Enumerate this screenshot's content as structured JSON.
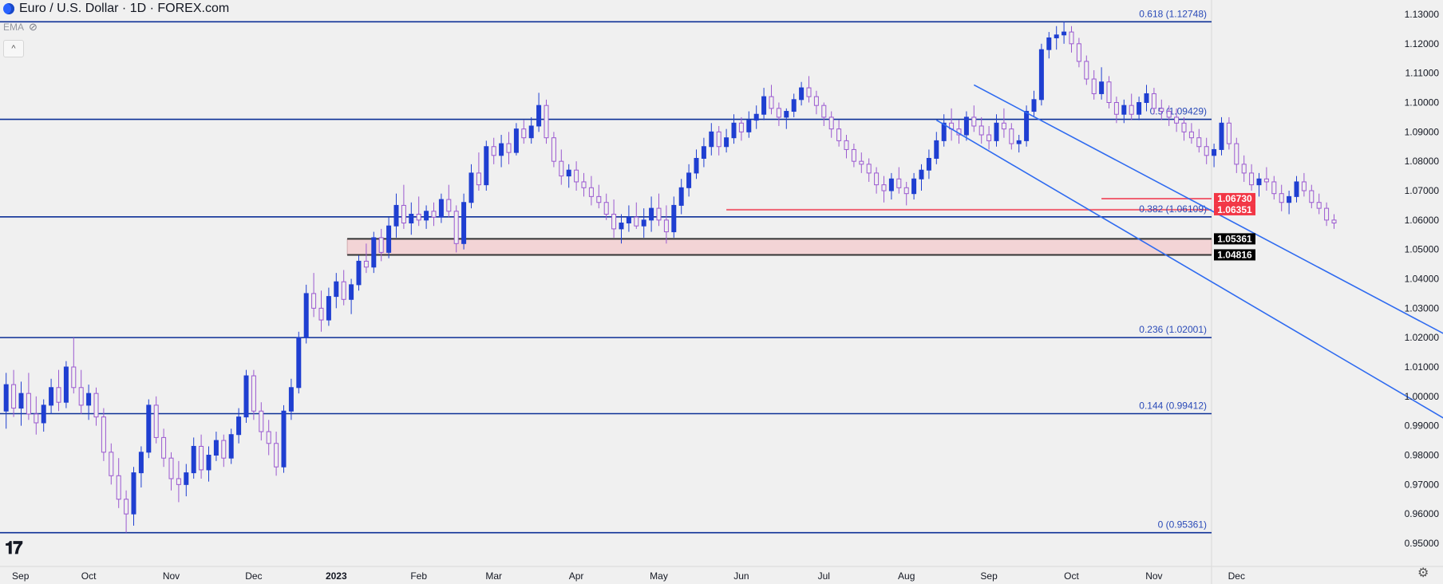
{
  "header": {
    "title": "Euro / U.S. Dollar · 1D · FOREX.com",
    "indicator": "EMA",
    "collapse_label": "^"
  },
  "watermark": "TV",
  "colors": {
    "bg": "#f0f0f0",
    "up": "#1f3fd1",
    "down": "#9b59d0",
    "level": "#0c2f96",
    "channel": "#2f6bf0",
    "red_level": "#f06272",
    "red_badge": "#f23645",
    "zone_fill": "#f3d4d6",
    "black": "#000000"
  },
  "chart_data": {
    "type": "candlestick",
    "title": "Euro / U.S. Dollar · 1D · FOREX.com",
    "y_range": [
      0.95,
      1.13
    ],
    "y_ticks": [
      "1.13000",
      "1.12000",
      "1.11000",
      "1.10000",
      "1.09000",
      "1.08000",
      "1.07000",
      "1.06000",
      "1.05000",
      "1.04000",
      "1.03000",
      "1.02000",
      "1.01000",
      "1.00000",
      "0.99000",
      "0.98000",
      "0.97000",
      "0.96000",
      "0.95000"
    ],
    "x_ticks": [
      "Sep",
      "Oct",
      "Nov",
      "Dec",
      "2023",
      "Feb",
      "Mar",
      "Apr",
      "May",
      "Jun",
      "Jul",
      "Aug",
      "Sep",
      "Oct",
      "Nov",
      "Dec"
    ],
    "fib_levels": [
      {
        "label": "0.618 (1.12748)",
        "value": 1.12748
      },
      {
        "label": "0.5 (1.09429)",
        "value": 1.09429
      },
      {
        "label": "0.382 (1.06109)",
        "value": 1.06109
      },
      {
        "label": "0.236 (1.02001)",
        "value": 1.02001
      },
      {
        "label": "0.144 (0.99412)",
        "value": 0.99412
      },
      {
        "label": "0 (0.95361)",
        "value": 0.95361
      }
    ],
    "price_badges": [
      {
        "label": "1.06730",
        "value": 1.0673,
        "color": "red"
      },
      {
        "label": "1.06351",
        "value": 1.06351,
        "color": "red"
      },
      {
        "label": "1.05361",
        "value": 1.05361,
        "color": "black"
      },
      {
        "label": "1.04816",
        "value": 1.04816,
        "color": "black"
      }
    ],
    "support_zone": [
      1.04816,
      1.05361
    ],
    "candles": [
      [
        0.995,
        1.008,
        0.989,
        1.004
      ],
      [
        1.004,
        1.009,
        0.993,
        0.996
      ],
      [
        0.996,
        1.005,
        0.99,
        1.001
      ],
      [
        1.001,
        1.008,
        0.992,
        0.994
      ],
      [
        0.994,
        1.0,
        0.987,
        0.991
      ],
      [
        0.991,
        0.999,
        0.988,
        0.997
      ],
      [
        0.997,
        1.006,
        0.994,
        1.003
      ],
      [
        1.003,
        1.009,
        0.995,
        0.998
      ],
      [
        0.998,
        1.012,
        0.996,
        1.01
      ],
      [
        1.01,
        1.02,
        1.001,
        1.003
      ],
      [
        1.003,
        1.009,
        0.994,
        0.997
      ],
      [
        0.997,
        1.004,
        0.992,
        1.001
      ],
      [
        1.001,
        1.003,
        0.99,
        0.993
      ],
      [
        0.993,
        0.996,
        0.978,
        0.981
      ],
      [
        0.981,
        0.984,
        0.97,
        0.973
      ],
      [
        0.973,
        0.979,
        0.962,
        0.965
      ],
      [
        0.965,
        0.968,
        0.9536,
        0.96
      ],
      [
        0.96,
        0.976,
        0.956,
        0.974
      ],
      [
        0.974,
        0.983,
        0.969,
        0.981
      ],
      [
        0.981,
        0.999,
        0.979,
        0.997
      ],
      [
        0.997,
        1.0,
        0.984,
        0.986
      ],
      [
        0.986,
        0.989,
        0.976,
        0.979
      ],
      [
        0.979,
        0.981,
        0.968,
        0.972
      ],
      [
        0.972,
        0.978,
        0.964,
        0.97
      ],
      [
        0.97,
        0.977,
        0.966,
        0.974
      ],
      [
        0.974,
        0.986,
        0.972,
        0.983
      ],
      [
        0.983,
        0.987,
        0.972,
        0.975
      ],
      [
        0.975,
        0.983,
        0.971,
        0.98
      ],
      [
        0.98,
        0.988,
        0.978,
        0.985
      ],
      [
        0.985,
        0.987,
        0.976,
        0.979
      ],
      [
        0.979,
        0.989,
        0.977,
        0.987
      ],
      [
        0.987,
        0.996,
        0.984,
        0.993
      ],
      [
        0.993,
        1.009,
        0.991,
        1.007
      ],
      [
        1.007,
        1.009,
        0.992,
        0.995
      ],
      [
        0.995,
        0.998,
        0.985,
        0.988
      ],
      [
        0.988,
        0.992,
        0.98,
        0.984
      ],
      [
        0.984,
        0.988,
        0.973,
        0.976
      ],
      [
        0.976,
        0.997,
        0.974,
        0.995
      ],
      [
        0.995,
        1.006,
        0.992,
        1.003
      ],
      [
        1.003,
        1.022,
        1.001,
        1.02
      ],
      [
        1.02,
        1.038,
        1.018,
        1.035
      ],
      [
        1.035,
        1.042,
        1.027,
        1.03
      ],
      [
        1.03,
        1.036,
        1.022,
        1.026
      ],
      [
        1.026,
        1.037,
        1.024,
        1.034
      ],
      [
        1.034,
        1.042,
        1.03,
        1.039
      ],
      [
        1.039,
        1.043,
        1.031,
        1.033
      ],
      [
        1.033,
        1.04,
        1.028,
        1.038
      ],
      [
        1.038,
        1.048,
        1.036,
        1.046
      ],
      [
        1.046,
        1.052,
        1.042,
        1.044
      ],
      [
        1.044,
        1.056,
        1.042,
        1.054
      ],
      [
        1.054,
        1.057,
        1.046,
        1.049
      ],
      [
        1.049,
        1.061,
        1.047,
        1.058
      ],
      [
        1.058,
        1.069,
        1.054,
        1.065
      ],
      [
        1.065,
        1.072,
        1.057,
        1.059
      ],
      [
        1.059,
        1.066,
        1.055,
        1.062
      ],
      [
        1.062,
        1.068,
        1.058,
        1.06
      ],
      [
        1.06,
        1.065,
        1.057,
        1.063
      ],
      [
        1.063,
        1.066,
        1.058,
        1.061
      ],
      [
        1.061,
        1.069,
        1.059,
        1.067
      ],
      [
        1.067,
        1.072,
        1.061,
        1.063
      ],
      [
        1.063,
        1.065,
        1.049,
        1.052
      ],
      [
        1.052,
        1.069,
        1.05,
        1.066
      ],
      [
        1.066,
        1.079,
        1.064,
        1.076
      ],
      [
        1.076,
        1.083,
        1.07,
        1.072
      ],
      [
        1.072,
        1.087,
        1.07,
        1.085
      ],
      [
        1.085,
        1.088,
        1.079,
        1.082
      ],
      [
        1.082,
        1.089,
        1.078,
        1.086
      ],
      [
        1.086,
        1.09,
        1.079,
        1.083
      ],
      [
        1.083,
        1.093,
        1.082,
        1.091
      ],
      [
        1.091,
        1.094,
        1.086,
        1.088
      ],
      [
        1.088,
        1.095,
        1.086,
        1.092
      ],
      [
        1.092,
        1.1033,
        1.09,
        1.099
      ],
      [
        1.099,
        1.101,
        1.086,
        1.088
      ],
      [
        1.088,
        1.09,
        1.078,
        1.08
      ],
      [
        1.08,
        1.084,
        1.072,
        1.075
      ],
      [
        1.075,
        1.079,
        1.071,
        1.077
      ],
      [
        1.077,
        1.08,
        1.07,
        1.073
      ],
      [
        1.073,
        1.076,
        1.068,
        1.071
      ],
      [
        1.071,
        1.075,
        1.065,
        1.068
      ],
      [
        1.068,
        1.072,
        1.064,
        1.066
      ],
      [
        1.066,
        1.069,
        1.06,
        1.062
      ],
      [
        1.062,
        1.067,
        1.054,
        1.057
      ],
      [
        1.057,
        1.062,
        1.052,
        1.059
      ],
      [
        1.059,
        1.065,
        1.056,
        1.061
      ],
      [
        1.061,
        1.066,
        1.057,
        1.058
      ],
      [
        1.058,
        1.064,
        1.054,
        1.06
      ],
      [
        1.06,
        1.068,
        1.056,
        1.064
      ],
      [
        1.064,
        1.069,
        1.058,
        1.06
      ],
      [
        1.06,
        1.065,
        1.052,
        1.056
      ],
      [
        1.056,
        1.068,
        1.054,
        1.065
      ],
      [
        1.065,
        1.074,
        1.062,
        1.071
      ],
      [
        1.071,
        1.079,
        1.068,
        1.076
      ],
      [
        1.076,
        1.084,
        1.074,
        1.081
      ],
      [
        1.081,
        1.088,
        1.078,
        1.085
      ],
      [
        1.085,
        1.093,
        1.082,
        1.09
      ],
      [
        1.09,
        1.092,
        1.082,
        1.085
      ],
      [
        1.085,
        1.091,
        1.083,
        1.088
      ],
      [
        1.088,
        1.096,
        1.086,
        1.093
      ],
      [
        1.093,
        1.095,
        1.087,
        1.09
      ],
      [
        1.09,
        1.097,
        1.088,
        1.094
      ],
      [
        1.094,
        1.099,
        1.091,
        1.096
      ],
      [
        1.096,
        1.105,
        1.094,
        1.102
      ],
      [
        1.102,
        1.106,
        1.096,
        1.098
      ],
      [
        1.098,
        1.1,
        1.092,
        1.095
      ],
      [
        1.095,
        1.098,
        1.091,
        1.097
      ],
      [
        1.097,
        1.103,
        1.095,
        1.101
      ],
      [
        1.101,
        1.107,
        1.099,
        1.105
      ],
      [
        1.105,
        1.109,
        1.1,
        1.102
      ],
      [
        1.102,
        1.104,
        1.096,
        1.099
      ],
      [
        1.099,
        1.1,
        1.092,
        1.095
      ],
      [
        1.095,
        1.097,
        1.088,
        1.091
      ],
      [
        1.091,
        1.094,
        1.085,
        1.087
      ],
      [
        1.087,
        1.089,
        1.081,
        1.084
      ],
      [
        1.084,
        1.086,
        1.078,
        1.08
      ],
      [
        1.08,
        1.083,
        1.076,
        1.079
      ],
      [
        1.079,
        1.081,
        1.073,
        1.076
      ],
      [
        1.076,
        1.078,
        1.069,
        1.072
      ],
      [
        1.072,
        1.075,
        1.066,
        1.07
      ],
      [
        1.07,
        1.076,
        1.067,
        1.074
      ],
      [
        1.074,
        1.078,
        1.069,
        1.071
      ],
      [
        1.071,
        1.073,
        1.065,
        1.069
      ],
      [
        1.069,
        1.076,
        1.067,
        1.074
      ],
      [
        1.074,
        1.079,
        1.07,
        1.077
      ],
      [
        1.077,
        1.084,
        1.074,
        1.081
      ],
      [
        1.081,
        1.09,
        1.079,
        1.087
      ],
      [
        1.087,
        1.096,
        1.085,
        1.093
      ],
      [
        1.093,
        1.098,
        1.087,
        1.091
      ],
      [
        1.091,
        1.094,
        1.086,
        1.089
      ],
      [
        1.089,
        1.097,
        1.087,
        1.095
      ],
      [
        1.095,
        1.099,
        1.09,
        1.092
      ],
      [
        1.092,
        1.095,
        1.086,
        1.089
      ],
      [
        1.089,
        1.092,
        1.084,
        1.087
      ],
      [
        1.087,
        1.096,
        1.085,
        1.093
      ],
      [
        1.093,
        1.098,
        1.088,
        1.091
      ],
      [
        1.091,
        1.093,
        1.084,
        1.086
      ],
      [
        1.086,
        1.089,
        1.083,
        1.087
      ],
      [
        1.087,
        1.099,
        1.085,
        1.097
      ],
      [
        1.097,
        1.104,
        1.095,
        1.101
      ],
      [
        1.101,
        1.12,
        1.099,
        1.118
      ],
      [
        1.118,
        1.124,
        1.115,
        1.122
      ],
      [
        1.122,
        1.126,
        1.118,
        1.123
      ],
      [
        1.123,
        1.1275,
        1.12,
        1.124
      ],
      [
        1.124,
        1.126,
        1.117,
        1.12
      ],
      [
        1.12,
        1.122,
        1.112,
        1.114
      ],
      [
        1.114,
        1.116,
        1.106,
        1.108
      ],
      [
        1.108,
        1.111,
        1.101,
        1.103
      ],
      [
        1.103,
        1.112,
        1.101,
        1.107
      ],
      [
        1.107,
        1.109,
        1.098,
        1.1
      ],
      [
        1.1,
        1.102,
        1.093,
        1.096
      ],
      [
        1.096,
        1.101,
        1.093,
        1.099
      ],
      [
        1.099,
        1.103,
        1.094,
        1.096
      ],
      [
        1.096,
        1.102,
        1.094,
        1.1
      ],
      [
        1.1,
        1.106,
        1.097,
        1.103
      ],
      [
        1.103,
        1.105,
        1.096,
        1.098
      ],
      [
        1.098,
        1.101,
        1.094,
        1.097
      ],
      [
        1.097,
        1.099,
        1.092,
        1.095
      ],
      [
        1.095,
        1.098,
        1.09,
        1.093
      ],
      [
        1.093,
        1.095,
        1.087,
        1.09
      ],
      [
        1.09,
        1.093,
        1.086,
        1.088
      ],
      [
        1.088,
        1.091,
        1.083,
        1.085
      ],
      [
        1.085,
        1.088,
        1.079,
        1.082
      ],
      [
        1.082,
        1.086,
        1.078,
        1.084
      ],
      [
        1.084,
        1.095,
        1.082,
        1.093
      ],
      [
        1.093,
        1.095,
        1.084,
        1.086
      ],
      [
        1.086,
        1.088,
        1.076,
        1.079
      ],
      [
        1.079,
        1.082,
        1.073,
        1.076
      ],
      [
        1.076,
        1.079,
        1.07,
        1.072
      ],
      [
        1.072,
        1.076,
        1.068,
        1.074
      ],
      [
        1.074,
        1.078,
        1.07,
        1.073
      ],
      [
        1.073,
        1.075,
        1.067,
        1.069
      ],
      [
        1.069,
        1.072,
        1.063,
        1.066
      ],
      [
        1.066,
        1.07,
        1.062,
        1.068
      ],
      [
        1.068,
        1.075,
        1.066,
        1.073
      ],
      [
        1.073,
        1.076,
        1.068,
        1.07
      ],
      [
        1.07,
        1.072,
        1.064,
        1.066
      ],
      [
        1.066,
        1.069,
        1.062,
        1.064
      ],
      [
        1.064,
        1.066,
        1.058,
        1.06
      ],
      [
        1.06,
        1.062,
        1.057,
        1.059
      ]
    ],
    "channel_lines": [
      {
        "x0": 129,
        "y0": 1.106,
        "x1": 200,
        "y1": 1.01
      },
      {
        "x0": 124,
        "y0": 1.094,
        "x1": 200,
        "y1": 0.98
      }
    ],
    "x_tick_positions": [
      0,
      11,
      22,
      33,
      44,
      55,
      65,
      76,
      87,
      98,
      109,
      120,
      131,
      142,
      153,
      164
    ]
  }
}
